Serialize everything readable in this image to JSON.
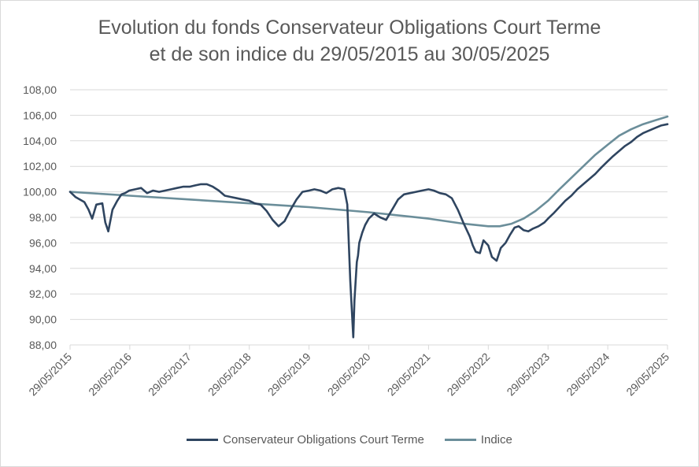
{
  "chart_data": {
    "type": "line",
    "title_line1": "Evolution du fonds Conservateur Obligations Court Terme",
    "title_line2": "et de son indice du 29/05/2015 au 30/05/2025",
    "xlabel": "",
    "ylabel": "",
    "ylim": [
      88,
      108
    ],
    "y_ticks": [
      "88,00",
      "90,00",
      "92,00",
      "94,00",
      "96,00",
      "98,00",
      "100,00",
      "102,00",
      "104,00",
      "106,00",
      "108,00"
    ],
    "x_ticks": [
      "29/05/2015",
      "29/05/2016",
      "29/05/2017",
      "29/05/2018",
      "29/05/2019",
      "29/05/2020",
      "29/05/2021",
      "29/05/2022",
      "29/05/2023",
      "29/05/2024",
      "29/05/2025"
    ],
    "grid": true,
    "legend_position": "bottom",
    "series": [
      {
        "name": "Conservateur Obligations Court Terme",
        "color": "#2f4560",
        "x": [
          2015.41,
          2015.5,
          2015.65,
          2015.72,
          2015.78,
          2015.85,
          2015.95,
          2016.0,
          2016.05,
          2016.12,
          2016.2,
          2016.27,
          2016.33,
          2016.4,
          2016.5,
          2016.6,
          2016.7,
          2016.8,
          2016.9,
          2017.0,
          2017.1,
          2017.2,
          2017.3,
          2017.41,
          2017.5,
          2017.6,
          2017.7,
          2017.8,
          2017.9,
          2018.0,
          2018.1,
          2018.2,
          2018.3,
          2018.41,
          2018.5,
          2018.6,
          2018.7,
          2018.8,
          2018.9,
          2019.0,
          2019.1,
          2019.2,
          2019.3,
          2019.41,
          2019.5,
          2019.6,
          2019.7,
          2019.8,
          2019.9,
          2020.0,
          2020.05,
          2020.1,
          2020.15,
          2020.17,
          2020.19,
          2020.21,
          2020.23,
          2020.25,
          2020.3,
          2020.35,
          2020.41,
          2020.5,
          2020.6,
          2020.7,
          2020.8,
          2020.9,
          2021.0,
          2021.1,
          2021.2,
          2021.3,
          2021.41,
          2021.5,
          2021.6,
          2021.7,
          2021.8,
          2021.9,
          2022.0,
          2022.1,
          2022.15,
          2022.2,
          2022.27,
          2022.33,
          2022.41,
          2022.47,
          2022.55,
          2022.62,
          2022.7,
          2022.77,
          2022.85,
          2022.92,
          2023.0,
          2023.08,
          2023.15,
          2023.25,
          2023.35,
          2023.41,
          2023.5,
          2023.6,
          2023.7,
          2023.8,
          2023.9,
          2024.0,
          2024.1,
          2024.2,
          2024.3,
          2024.41,
          2024.5,
          2024.6,
          2024.7,
          2024.8,
          2024.9,
          2025.0,
          2025.1,
          2025.2,
          2025.3,
          2025.41
        ],
        "values": [
          100.0,
          99.6,
          99.2,
          98.6,
          97.9,
          99.0,
          99.1,
          97.6,
          96.9,
          98.6,
          99.3,
          99.8,
          99.9,
          100.1,
          100.2,
          100.3,
          99.9,
          100.1,
          100.0,
          100.1,
          100.2,
          100.3,
          100.4,
          100.4,
          100.5,
          100.6,
          100.6,
          100.4,
          100.1,
          99.7,
          99.6,
          99.5,
          99.4,
          99.3,
          99.1,
          99.0,
          98.5,
          97.8,
          97.3,
          97.7,
          98.6,
          99.4,
          100.0,
          100.1,
          100.2,
          100.1,
          99.9,
          100.2,
          100.3,
          100.2,
          99.0,
          93.0,
          88.6,
          91.5,
          93.0,
          94.5,
          95.0,
          96.0,
          96.8,
          97.4,
          97.9,
          98.3,
          98.0,
          97.8,
          98.6,
          99.4,
          99.8,
          99.9,
          100.0,
          100.1,
          100.2,
          100.1,
          99.9,
          99.8,
          99.5,
          98.6,
          97.5,
          96.5,
          95.8,
          95.3,
          95.2,
          96.2,
          95.8,
          94.9,
          94.6,
          95.6,
          96.0,
          96.6,
          97.2,
          97.3,
          97.0,
          96.9,
          97.1,
          97.3,
          97.6,
          97.9,
          98.3,
          98.8,
          99.3,
          99.7,
          100.2,
          100.6,
          101.0,
          101.4,
          101.9,
          102.4,
          102.8,
          103.2,
          103.6,
          103.9,
          104.3,
          104.6,
          104.8,
          105.0,
          105.2,
          105.3
        ]
      },
      {
        "name": "Indice",
        "color": "#6b8e9a",
        "x": [
          2015.41,
          2016.41,
          2017.41,
          2018.41,
          2019.41,
          2020.41,
          2021.41,
          2022.0,
          2022.41,
          2022.6,
          2022.8,
          2023.0,
          2023.2,
          2023.41,
          2023.6,
          2023.8,
          2024.0,
          2024.2,
          2024.41,
          2024.6,
          2024.8,
          2025.0,
          2025.2,
          2025.41
        ],
        "values": [
          100.0,
          99.7,
          99.4,
          99.1,
          98.8,
          98.4,
          97.9,
          97.5,
          97.3,
          97.3,
          97.5,
          97.9,
          98.5,
          99.3,
          100.2,
          101.1,
          102.0,
          102.9,
          103.7,
          104.4,
          104.9,
          105.3,
          105.6,
          105.9
        ]
      }
    ]
  }
}
